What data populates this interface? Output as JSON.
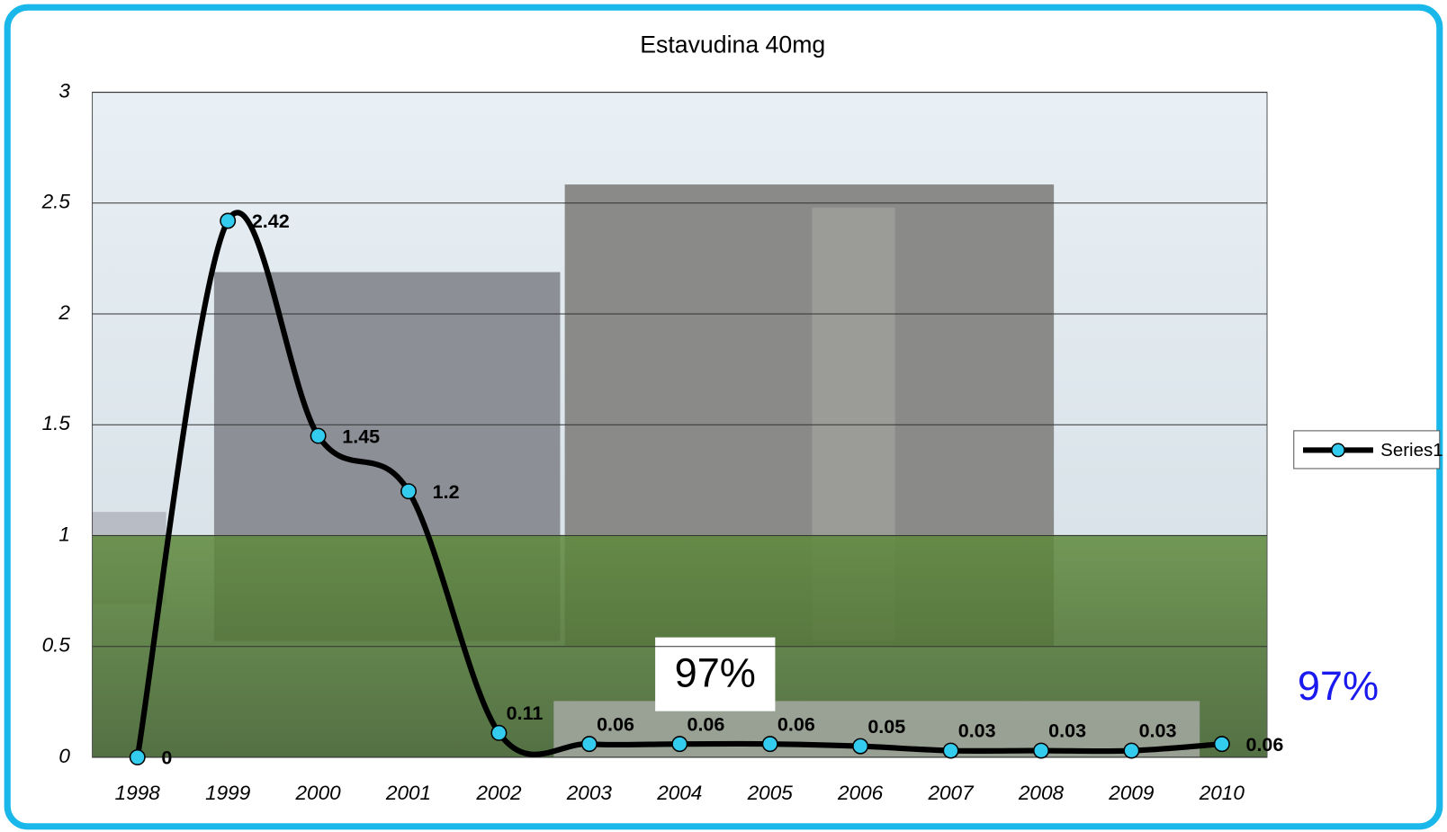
{
  "chart_data": {
    "type": "line",
    "title": "Estavudina 40mg",
    "categories": [
      "1998",
      "1999",
      "2000",
      "2001",
      "2002",
      "2003",
      "2004",
      "2005",
      "2006",
      "2007",
      "2008",
      "2009",
      "2010"
    ],
    "series": [
      {
        "name": "Series1",
        "color": "#000000",
        "marker_color": "#33ccee",
        "values": [
          0,
          2.42,
          1.45,
          1.2,
          0.11,
          0.06,
          0.06,
          0.06,
          0.05,
          0.03,
          0.03,
          0.03,
          0.06
        ]
      }
    ],
    "ylim": [
      0,
      3
    ],
    "yticks": [
      0,
      0.5,
      1,
      1.5,
      2,
      2.5,
      3
    ],
    "grid": true,
    "legend": "right",
    "annotations": [
      "97%",
      "97%"
    ]
  }
}
